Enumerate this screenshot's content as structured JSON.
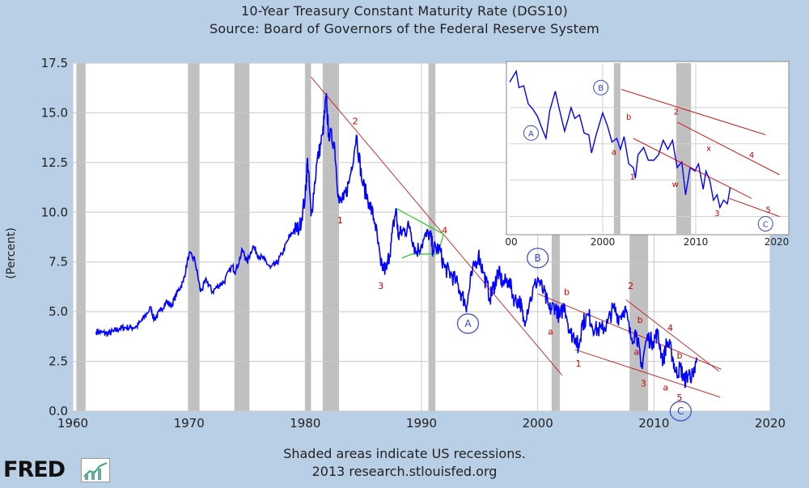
{
  "title": "10-Year Treasury Constant Maturity Rate (DGS10)",
  "subtitle": "Source: Board of Governors of the Federal Reserve System",
  "ylabel": "(Percent)",
  "footnote": "Shaded areas indicate US recessions.",
  "footnote2": "2013 research.stlouisfed.org",
  "logo": "FRED",
  "colors": {
    "series": "#0000ff",
    "recession": "#c0c0c0",
    "annotation": "#cc0000",
    "bg": "#b8cfe6",
    "green": "#22cc22"
  },
  "chart_data": {
    "type": "line",
    "title": "10-Year Treasury Constant Maturity Rate (DGS10)",
    "ylabel": "(Percent)",
    "xlim": [
      1960,
      2020
    ],
    "ylim": [
      0,
      17.5
    ],
    "x_ticks": [
      "1960",
      "1970",
      "1980",
      "1990",
      "2000",
      "2010",
      "2020"
    ],
    "y_ticks": [
      "0.0",
      "2.5",
      "5.0",
      "7.5",
      "10.0",
      "12.5",
      "15.0",
      "17.5"
    ],
    "grid": true,
    "recessions": [
      [
        1960.3,
        1961.1
      ],
      [
        1969.9,
        1970.9
      ],
      [
        1973.9,
        1975.2
      ],
      [
        1980.0,
        1980.5
      ],
      [
        1981.5,
        1982.9
      ],
      [
        1990.6,
        1991.2
      ],
      [
        2001.2,
        2001.9
      ],
      [
        2007.9,
        2009.5
      ]
    ],
    "series": [
      {
        "values": [
          [
            1962.0,
            4.0
          ],
          [
            1962.5,
            3.95
          ],
          [
            1963.0,
            3.9
          ],
          [
            1963.5,
            4.0
          ],
          [
            1964.0,
            4.15
          ],
          [
            1964.5,
            4.2
          ],
          [
            1965.0,
            4.2
          ],
          [
            1965.5,
            4.25
          ],
          [
            1966.0,
            4.6
          ],
          [
            1966.7,
            5.2
          ],
          [
            1967.0,
            4.6
          ],
          [
            1967.5,
            5.0
          ],
          [
            1968.0,
            5.5
          ],
          [
            1968.5,
            5.3
          ],
          [
            1969.0,
            6.0
          ],
          [
            1969.5,
            6.5
          ],
          [
            1970.0,
            7.9
          ],
          [
            1970.5,
            7.6
          ],
          [
            1971.0,
            6.0
          ],
          [
            1971.5,
            6.6
          ],
          [
            1972.0,
            6.0
          ],
          [
            1972.5,
            6.3
          ],
          [
            1973.0,
            6.5
          ],
          [
            1973.7,
            7.3
          ],
          [
            1974.0,
            7.0
          ],
          [
            1974.6,
            8.1
          ],
          [
            1975.0,
            7.5
          ],
          [
            1975.5,
            8.3
          ],
          [
            1976.0,
            7.8
          ],
          [
            1976.5,
            7.6
          ],
          [
            1977.0,
            7.2
          ],
          [
            1977.5,
            7.4
          ],
          [
            1978.0,
            7.9
          ],
          [
            1978.5,
            8.6
          ],
          [
            1979.0,
            9.1
          ],
          [
            1979.5,
            9.2
          ],
          [
            1980.0,
            10.8
          ],
          [
            1980.2,
            12.7
          ],
          [
            1980.5,
            9.8
          ],
          [
            1981.0,
            12.5
          ],
          [
            1981.5,
            13.9
          ],
          [
            1981.8,
            15.8
          ],
          [
            1982.0,
            14.0
          ],
          [
            1982.5,
            13.5
          ],
          [
            1982.9,
            10.5
          ],
          [
            1983.3,
            10.6
          ],
          [
            1983.8,
            11.6
          ],
          [
            1984.4,
            13.9
          ],
          [
            1984.9,
            11.5
          ],
          [
            1985.5,
            10.5
          ],
          [
            1986.0,
            9.5
          ],
          [
            1986.5,
            7.3
          ],
          [
            1987.0,
            7.1
          ],
          [
            1987.4,
            8.5
          ],
          [
            1987.8,
            10.2
          ],
          [
            1988.0,
            8.8
          ],
          [
            1988.5,
            9.1
          ],
          [
            1989.0,
            9.3
          ],
          [
            1989.5,
            8.0
          ],
          [
            1990.0,
            8.4
          ],
          [
            1990.7,
            9.0
          ],
          [
            1991.0,
            8.1
          ],
          [
            1991.5,
            8.2
          ],
          [
            1992.0,
            7.2
          ],
          [
            1992.5,
            6.9
          ],
          [
            1993.0,
            6.5
          ],
          [
            1993.5,
            5.8
          ],
          [
            1993.9,
            5.3
          ],
          [
            1994.3,
            6.8
          ],
          [
            1994.9,
            7.9
          ],
          [
            1995.3,
            7.0
          ],
          [
            1995.9,
            5.7
          ],
          [
            1996.3,
            6.4
          ],
          [
            1996.6,
            7.0
          ],
          [
            1997.0,
            6.4
          ],
          [
            1997.5,
            6.6
          ],
          [
            1998.0,
            5.6
          ],
          [
            1998.5,
            5.5
          ],
          [
            1998.8,
            4.5
          ],
          [
            1999.3,
            5.5
          ],
          [
            2000.0,
            6.7
          ],
          [
            2000.5,
            6.0
          ],
          [
            2001.0,
            5.1
          ],
          [
            2001.5,
            5.3
          ],
          [
            2001.9,
            4.7
          ],
          [
            2002.3,
            5.4
          ],
          [
            2002.8,
            3.9
          ],
          [
            2003.3,
            3.7
          ],
          [
            2003.5,
            3.1
          ],
          [
            2003.8,
            4.4
          ],
          [
            2004.4,
            4.8
          ],
          [
            2004.9,
            4.1
          ],
          [
            2005.5,
            4.1
          ],
          [
            2006.0,
            4.4
          ],
          [
            2006.5,
            5.2
          ],
          [
            2007.0,
            4.7
          ],
          [
            2007.5,
            5.2
          ],
          [
            2008.0,
            3.7
          ],
          [
            2008.5,
            4.0
          ],
          [
            2008.9,
            2.2
          ],
          [
            2009.4,
            3.7
          ],
          [
            2009.9,
            3.5
          ],
          [
            2010.3,
            3.9
          ],
          [
            2010.8,
            2.5
          ],
          [
            2011.1,
            3.5
          ],
          [
            2011.5,
            3.0
          ],
          [
            2011.9,
            1.9
          ],
          [
            2012.3,
            2.2
          ],
          [
            2012.6,
            1.5
          ],
          [
            2013.0,
            1.9
          ],
          [
            2013.4,
            1.7
          ],
          [
            2013.7,
            2.6
          ]
        ]
      }
    ],
    "annotations": [
      {
        "text": "1",
        "x": 1983.0,
        "y": 9.6
      },
      {
        "text": "2",
        "x": 1984.3,
        "y": 14.6
      },
      {
        "text": "3",
        "x": 1986.5,
        "y": 6.3
      },
      {
        "text": "4",
        "x": 1992.0,
        "y": 9.1
      },
      {
        "text": "A",
        "x": 1994.0,
        "y": 4.4,
        "circled": true
      },
      {
        "text": "B",
        "x": 2000.0,
        "y": 7.7,
        "circled": true
      },
      {
        "text": "b",
        "x": 2002.5,
        "y": 6.0
      },
      {
        "text": "a",
        "x": 2001.1,
        "y": 4.0
      },
      {
        "text": "1",
        "x": 2003.5,
        "y": 2.4
      },
      {
        "text": "2",
        "x": 2008.0,
        "y": 6.3
      },
      {
        "text": "b",
        "x": 2008.8,
        "y": 4.6
      },
      {
        "text": "a",
        "x": 2008.5,
        "y": 3.0
      },
      {
        "text": "4",
        "x": 2011.4,
        "y": 4.2
      },
      {
        "text": "b",
        "x": 2012.2,
        "y": 2.8
      },
      {
        "text": "3",
        "x": 2009.1,
        "y": 1.4
      },
      {
        "text": "a",
        "x": 2011.0,
        "y": 1.2
      },
      {
        "text": "5",
        "x": 2012.2,
        "y": 0.7
      },
      {
        "text": "C",
        "x": 2012.3,
        "y": 0.0,
        "circled": true
      }
    ],
    "inset": {
      "x_ticks": [
        "2000",
        "2010",
        "2020"
      ],
      "first_tick_label": "00",
      "annotations": [
        "A",
        "B",
        "b",
        "2",
        "a",
        "1",
        "x",
        "4",
        "w",
        "3",
        "5",
        "C"
      ]
    }
  }
}
